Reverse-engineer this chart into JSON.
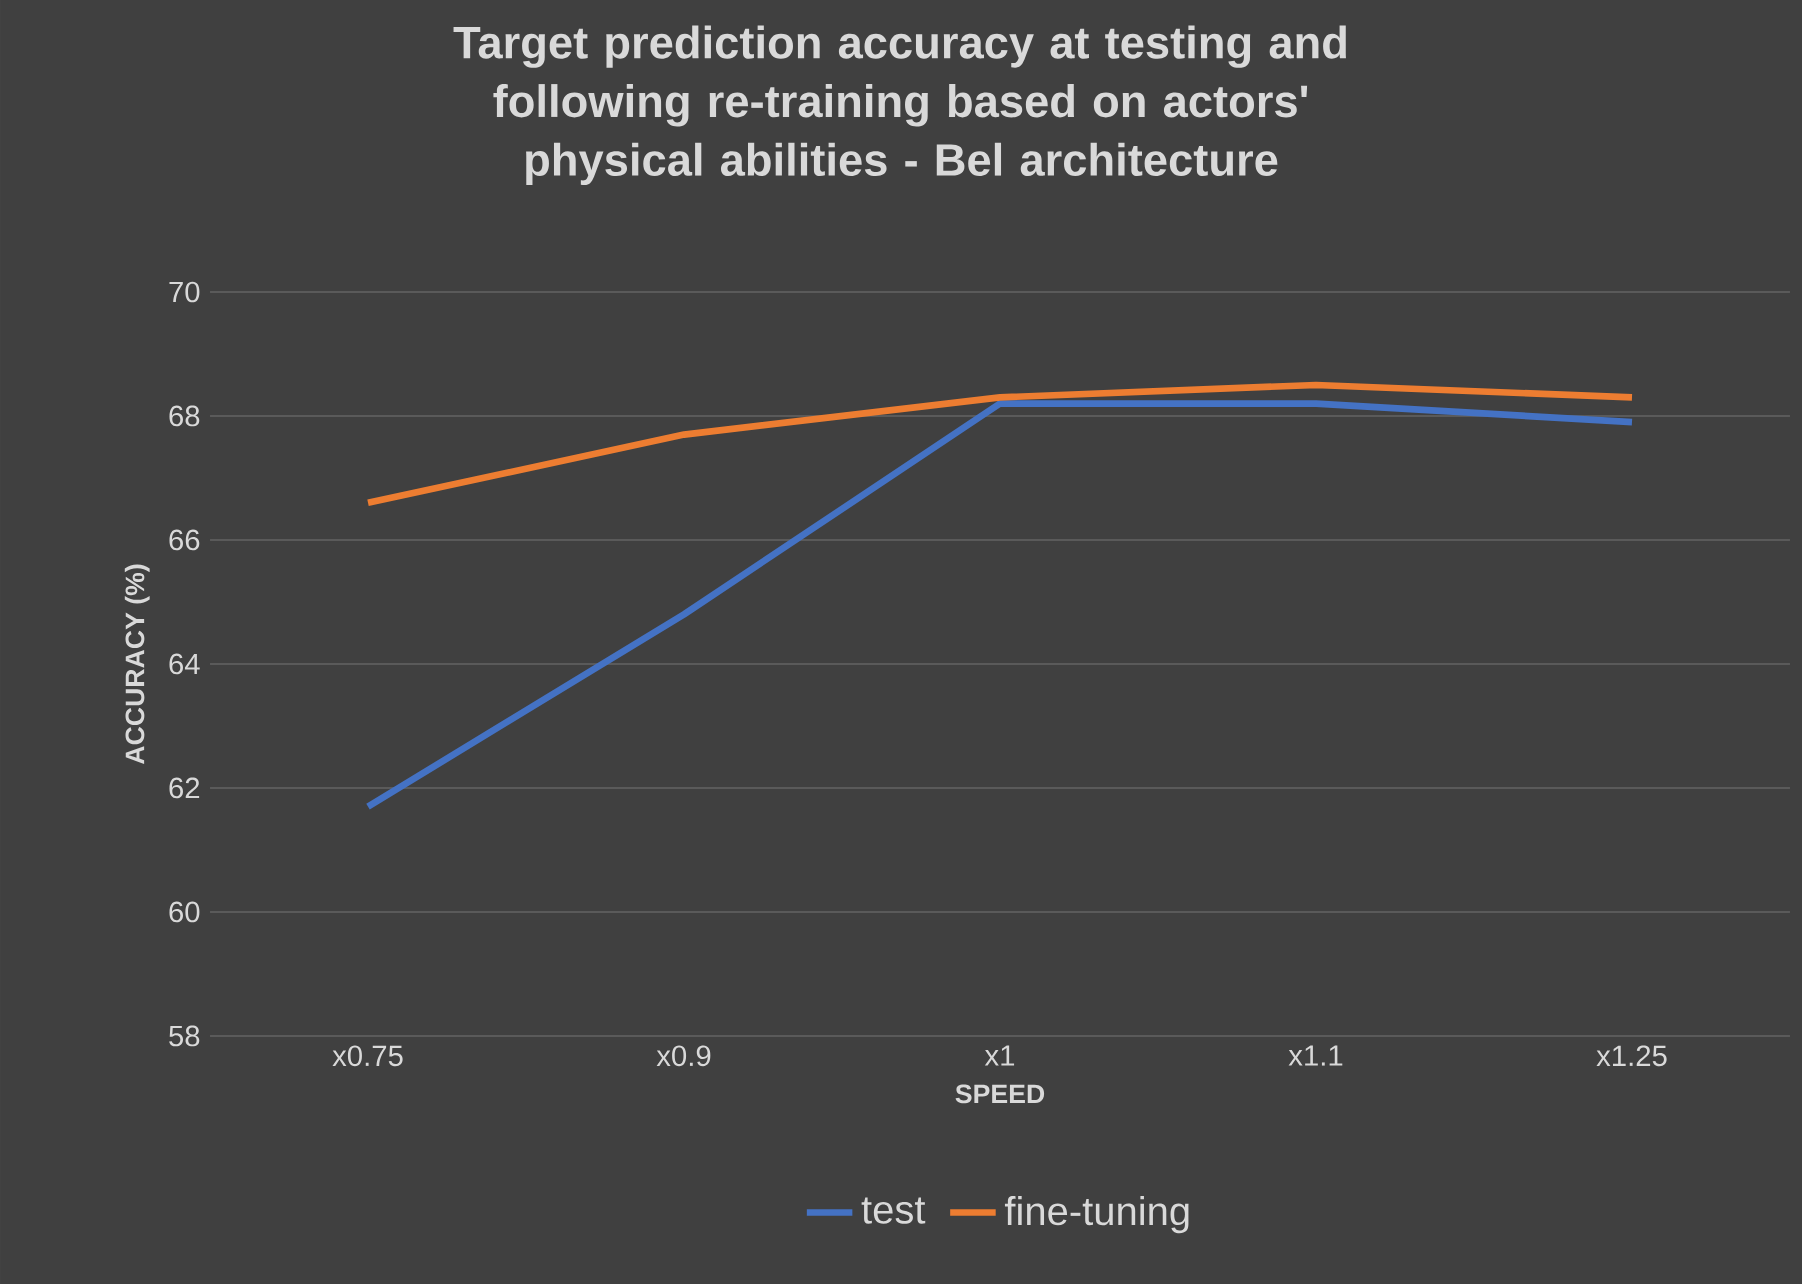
{
  "chart_data": {
    "type": "line",
    "title": "Target prediction accuracy at testing and following re-training based on actors' physical abilities - Bel architecture",
    "xlabel": "SPEED",
    "ylabel": "ACCURACY (%)",
    "categories": [
      "x0.75",
      "x0.9",
      "x1",
      "x1.1",
      "x1.25"
    ],
    "series": [
      {
        "name": "test",
        "color": "#4472c4",
        "values": [
          61.7,
          64.8,
          68.2,
          68.2,
          67.9
        ]
      },
      {
        "name": "fine-tuning",
        "color": "#ed7d31",
        "values": [
          66.6,
          67.7,
          68.3,
          68.5,
          68.3
        ]
      }
    ],
    "ylim": [
      58,
      70
    ],
    "yticks": [
      58,
      60,
      62,
      64,
      66,
      68,
      70
    ],
    "grid": "y",
    "legend": "bottom",
    "marker": "none",
    "line_style": "solid"
  }
}
